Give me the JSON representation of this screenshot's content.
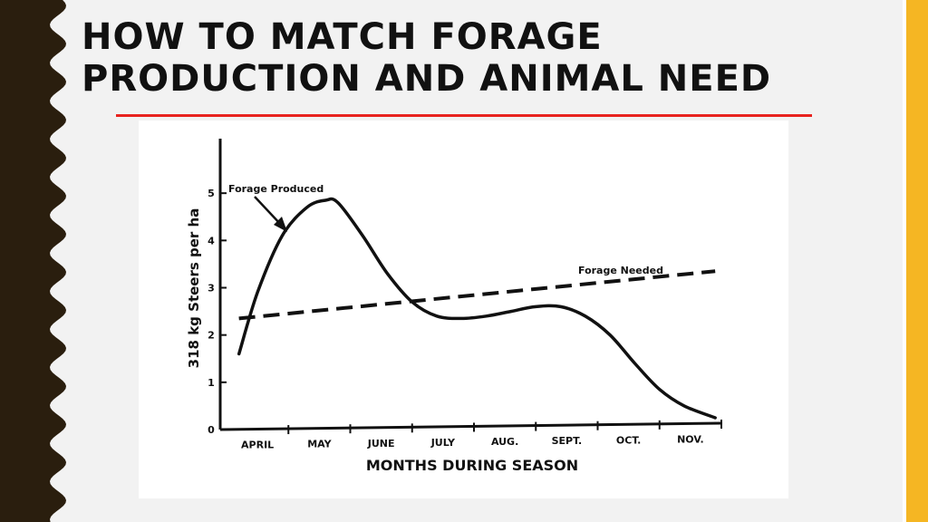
{
  "slide": {
    "title": "HOW TO MATCH FORAGE PRODUCTION AND ANIMAL NEED"
  },
  "colors": {
    "background": "#f2f2f2",
    "left_band": "#2a1e0e",
    "right_band": "#f5b623",
    "title_rule": "#e8231f",
    "chart_ink": "#111111"
  },
  "chart_data": {
    "type": "line",
    "title": "",
    "xlabel": "MONTHS DURING SEASON",
    "ylabel": "318 kg Steers per ha",
    "categories": [
      "APRIL",
      "MAY",
      "JUNE",
      "JULY",
      "AUG.",
      "SEPT.",
      "OCT.",
      "NOV."
    ],
    "yticks": [
      "0",
      "1",
      "2",
      "3",
      "4",
      "5"
    ],
    "ylim": [
      0,
      6
    ],
    "xlim": [
      0,
      8
    ],
    "grid": false,
    "series": [
      {
        "name": "Forage Produced",
        "style": "solid",
        "x": [
          0.2,
          0.5,
          0.9,
          1.3,
          1.6,
          1.8,
          2.2,
          2.6,
          3.0,
          3.4,
          3.8,
          4.2,
          4.6,
          5.0,
          5.4,
          5.8,
          6.2,
          6.6,
          7.0,
          7.4,
          7.9
        ],
        "y": [
          1.6,
          2.9,
          4.1,
          4.7,
          4.85,
          4.8,
          4.1,
          3.3,
          2.7,
          2.4,
          2.35,
          2.4,
          2.5,
          2.6,
          2.6,
          2.4,
          2.0,
          1.4,
          0.85,
          0.5,
          0.25
        ]
      },
      {
        "name": "Forage Needed",
        "style": "dashed",
        "x": [
          0.2,
          7.9
        ],
        "y": [
          2.35,
          3.35
        ]
      }
    ],
    "annotations": [
      {
        "text": "Forage Produced",
        "arrow": true
      },
      {
        "text": "Forage Needed",
        "arrow": false
      }
    ]
  }
}
